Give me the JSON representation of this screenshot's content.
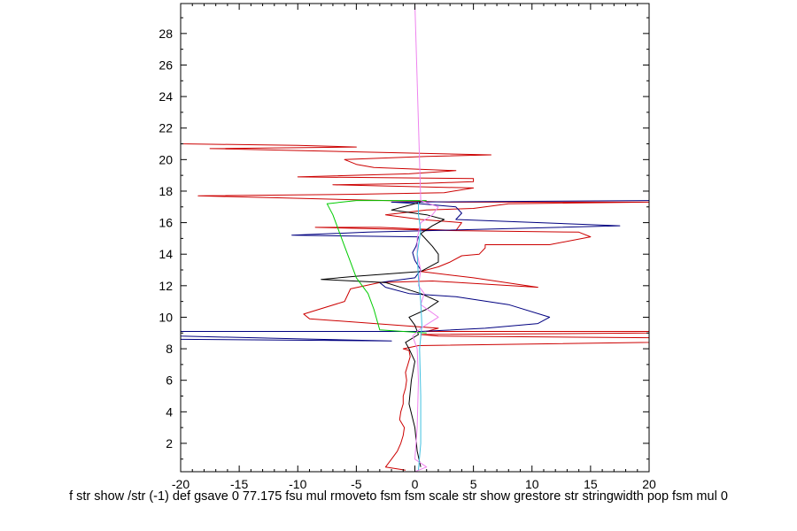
{
  "chart_data": {
    "type": "line",
    "title": "",
    "xlabel": "f str show /str (-1) def gsave 0 77.175 fsu mul rmoveto fsm fsm scale str show grestore str stringwidth pop fsm mul 0",
    "ylabel": "",
    "xlim": [
      -20,
      20
    ],
    "ylim": [
      0.2,
      29.9
    ],
    "x_ticks": [
      -20,
      -15,
      -10,
      -5,
      0,
      5,
      10,
      15,
      20
    ],
    "x_tick_labels": [
      "-20",
      "-15",
      "-10",
      "-5",
      "0",
      "5",
      "10",
      "15",
      "20"
    ],
    "y_ticks": [
      2,
      4,
      6,
      8,
      10,
      12,
      14,
      16,
      18,
      20,
      22,
      24,
      26,
      28
    ],
    "y_tick_labels": [
      "2",
      "4",
      "6",
      "8",
      "10",
      "12",
      "14",
      "16",
      "18",
      "20",
      "22",
      "24",
      "26",
      "28"
    ],
    "grid": false,
    "series": [
      {
        "color": "#cc0000",
        "points": [
          [
            -0.8,
            0.3
          ],
          [
            -2.5,
            0.5
          ],
          [
            -2.0,
            1.0
          ],
          [
            -1.5,
            1.5
          ],
          [
            -1.2,
            2.0
          ],
          [
            -1.0,
            2.5
          ],
          [
            -0.9,
            3.0
          ],
          [
            -1.3,
            3.5
          ],
          [
            -1.2,
            4.0
          ],
          [
            -1.0,
            4.5
          ],
          [
            -1.0,
            5.0
          ],
          [
            -0.8,
            5.5
          ],
          [
            -0.7,
            6.0
          ],
          [
            -0.8,
            6.5
          ],
          [
            -0.6,
            7.0
          ],
          [
            -0.4,
            7.5
          ],
          [
            -0.5,
            7.9
          ],
          [
            -1.0,
            8.0
          ],
          [
            0.3,
            8.2
          ],
          [
            20.0,
            8.4
          ],
          [
            20.0,
            8.7
          ],
          [
            2.0,
            8.8
          ],
          [
            0.5,
            8.9
          ],
          [
            20.0,
            9.0
          ],
          [
            20.0,
            9.1
          ],
          [
            1.0,
            9.1
          ],
          [
            2.0,
            9.3
          ],
          [
            -9.0,
            9.9
          ],
          [
            -9.5,
            10.2
          ],
          [
            -6.0,
            11.0
          ],
          [
            -5.5,
            11.8
          ],
          [
            -3.0,
            12.2
          ],
          [
            1.5,
            12.3
          ],
          [
            10.5,
            11.9
          ],
          [
            5.0,
            12.5
          ],
          [
            0.5,
            12.9
          ],
          [
            2.0,
            13.2
          ],
          [
            3.0,
            13.5
          ],
          [
            4.0,
            13.9
          ],
          [
            5.5,
            14.0
          ],
          [
            6.0,
            14.4
          ],
          [
            6.0,
            14.6
          ],
          [
            11.5,
            14.6
          ],
          [
            15.0,
            15.1
          ],
          [
            14.0,
            15.4
          ],
          [
            3.0,
            15.5
          ],
          [
            -8.5,
            15.7
          ],
          [
            -3.0,
            15.7
          ],
          [
            3.5,
            15.5
          ],
          [
            4.0,
            16.0
          ],
          [
            0.5,
            16.2
          ],
          [
            -2.5,
            16.5
          ],
          [
            1.0,
            16.8
          ],
          [
            5.0,
            16.9
          ],
          [
            8.0,
            17.2
          ],
          [
            20.0,
            17.3
          ],
          [
            17.5,
            17.3
          ],
          [
            3.0,
            17.3
          ],
          [
            -18.5,
            17.7
          ],
          [
            -5.0,
            17.8
          ],
          [
            2.5,
            17.9
          ],
          [
            5.0,
            18.2
          ],
          [
            -7.0,
            18.4
          ],
          [
            1.0,
            18.5
          ],
          [
            5.0,
            18.6
          ],
          [
            5.0,
            18.8
          ],
          [
            -10.0,
            18.9
          ],
          [
            -0.5,
            19.1
          ],
          [
            3.5,
            19.3
          ],
          [
            -3.5,
            19.5
          ],
          [
            -5.0,
            19.7
          ],
          [
            -6.0,
            20.0
          ],
          [
            1.0,
            20.2
          ],
          [
            6.5,
            20.3
          ],
          [
            -17.5,
            20.7
          ],
          [
            -5.0,
            20.8
          ],
          [
            -10.0,
            20.9
          ],
          [
            -20.0,
            21.0
          ],
          [
            -20.0,
            21.2
          ]
        ]
      },
      {
        "color": "#000080",
        "points": [
          [
            -20.0,
            8.6
          ],
          [
            -2.0,
            8.5
          ],
          [
            -20.0,
            8.8
          ],
          [
            -20.0,
            9.1
          ],
          [
            0.5,
            9.1
          ],
          [
            6.0,
            9.3
          ],
          [
            10.5,
            9.6
          ],
          [
            11.5,
            10.0
          ],
          [
            8.0,
            10.8
          ],
          [
            3.5,
            11.3
          ],
          [
            -0.5,
            11.5
          ],
          [
            -2.5,
            11.9
          ],
          [
            -3.0,
            12.2
          ],
          [
            0.0,
            12.5
          ],
          [
            0.5,
            13.0
          ],
          [
            0.0,
            13.6
          ],
          [
            -0.2,
            14.1
          ],
          [
            0.1,
            14.5
          ],
          [
            0.3,
            15.1
          ],
          [
            -10.5,
            15.2
          ],
          [
            -4.0,
            15.4
          ],
          [
            1.5,
            15.5
          ],
          [
            17.5,
            15.8
          ],
          [
            3.5,
            16.2
          ],
          [
            4.0,
            16.6
          ],
          [
            3.5,
            17.0
          ],
          [
            0.5,
            17.2
          ],
          [
            -2.0,
            17.3
          ],
          [
            20.0,
            17.4
          ]
        ]
      },
      {
        "color": "#000000",
        "points": [
          [
            0.5,
            0.5
          ],
          [
            0.2,
            1.5
          ],
          [
            0.0,
            3.0
          ],
          [
            -0.5,
            4.5
          ],
          [
            -0.3,
            6.0
          ],
          [
            0.0,
            7.2
          ],
          [
            -0.5,
            8.0
          ],
          [
            -0.8,
            8.4
          ],
          [
            0.3,
            8.9
          ],
          [
            0.0,
            9.5
          ],
          [
            -0.5,
            10.0
          ],
          [
            1.0,
            10.5
          ],
          [
            2.0,
            11.0
          ],
          [
            0.5,
            11.5
          ],
          [
            -2.5,
            12.2
          ],
          [
            -8.0,
            12.4
          ],
          [
            -5.0,
            12.6
          ],
          [
            0.5,
            12.9
          ],
          [
            2.0,
            13.5
          ],
          [
            2.0,
            14.0
          ],
          [
            1.5,
            14.5
          ],
          [
            0.5,
            15.3
          ],
          [
            1.5,
            15.8
          ],
          [
            2.5,
            16.2
          ],
          [
            1.0,
            16.5
          ],
          [
            -2.0,
            16.8
          ],
          [
            -0.5,
            17.1
          ],
          [
            0.5,
            17.3
          ]
        ]
      },
      {
        "color": "#00cc00",
        "points": [
          [
            1.0,
            9.0
          ],
          [
            -3.0,
            9.2
          ],
          [
            -3.5,
            10.5
          ],
          [
            -4.0,
            11.5
          ],
          [
            -5.0,
            12.5
          ],
          [
            -5.5,
            13.5
          ],
          [
            -6.0,
            14.5
          ],
          [
            -6.5,
            15.5
          ],
          [
            -7.0,
            16.5
          ],
          [
            -7.5,
            17.2
          ],
          [
            -5.0,
            17.4
          ],
          [
            -1.0,
            17.4
          ],
          [
            1.0,
            17.4
          ]
        ]
      },
      {
        "color": "#ee82ee",
        "points": [
          [
            0.0,
            0.2
          ],
          [
            1.0,
            0.5
          ],
          [
            0.0,
            1.0
          ],
          [
            0.2,
            3.0
          ],
          [
            0.3,
            6.0
          ],
          [
            0.2,
            8.0
          ],
          [
            -0.2,
            8.8
          ],
          [
            0.5,
            9.3
          ],
          [
            2.0,
            10.0
          ],
          [
            0.5,
            10.8
          ],
          [
            0.8,
            11.5
          ],
          [
            0.3,
            12.0
          ],
          [
            0.5,
            13.0
          ],
          [
            0.2,
            14.0
          ],
          [
            0.2,
            15.0
          ],
          [
            0.5,
            16.0
          ],
          [
            1.5,
            16.5
          ],
          [
            2.0,
            17.0
          ],
          [
            0.5,
            17.4
          ],
          [
            0.0,
            29.9
          ]
        ]
      },
      {
        "color": "#40c0e0",
        "points": [
          [
            0.3,
            0.3
          ],
          [
            0.5,
            2.0
          ],
          [
            0.5,
            5.0
          ],
          [
            0.4,
            8.0
          ],
          [
            0.6,
            9.5
          ],
          [
            0.5,
            11.0
          ],
          [
            0.3,
            12.5
          ],
          [
            0.2,
            14.0
          ],
          [
            0.5,
            15.5
          ],
          [
            0.3,
            16.5
          ],
          [
            0.3,
            17.3
          ]
        ]
      }
    ]
  }
}
